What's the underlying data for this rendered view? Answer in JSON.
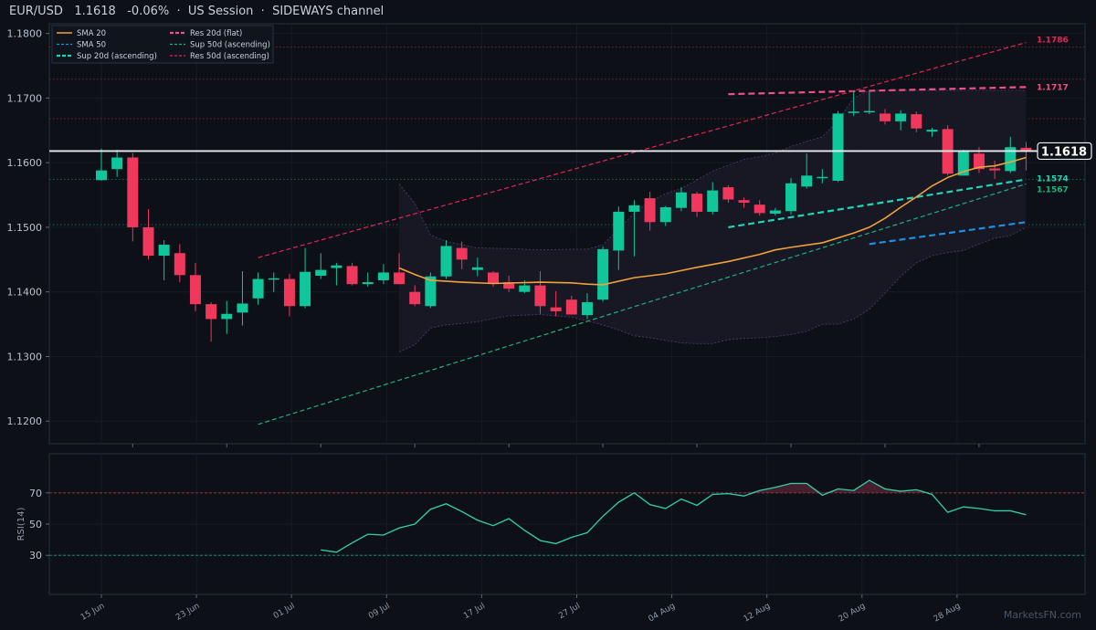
{
  "header": {
    "symbol": "EUR/USD",
    "price": "1.1618",
    "change": "-0.06%",
    "session": "US Session",
    "channel": "SIDEWAYS channel"
  },
  "watermark": "MarketsFN.com",
  "colors": {
    "bg": "#0d1017",
    "up": "#10c79c",
    "down": "#f0385d",
    "sma20": "#f0a23b",
    "sma50": "#1f8fe0",
    "sup20": "#1fd6b6",
    "res20": "#f0508a",
    "sup50": "#1fb07e",
    "res50": "#e02858",
    "rsi": "#2fd3a8"
  },
  "chart_data": {
    "type": "candlestick",
    "ylim": [
      1.1165,
      1.1815
    ],
    "yticks": [
      "1.1200",
      "1.1300",
      "1.1400",
      "1.1500",
      "1.1600",
      "1.1700",
      "1.1800"
    ],
    "xticks": [
      "15 Jun",
      "23 Jun",
      "01 Jul",
      "09 Jul",
      "17 Jul",
      "27 Jul",
      "04 Aug",
      "12 Aug",
      "20 Aug",
      "28 Aug"
    ],
    "last_price": "1.1618",
    "candles": [
      [
        1.1573,
        1.1588,
        1.1622,
        1.1572
      ],
      [
        1.159,
        1.1608,
        1.162,
        1.1578
      ],
      [
        1.1608,
        1.15,
        1.1615,
        1.1478
      ],
      [
        1.15,
        1.1456,
        1.1528,
        1.145
      ],
      [
        1.1456,
        1.1473,
        1.148,
        1.1418
      ],
      [
        1.146,
        1.1426,
        1.1474,
        1.1415
      ],
      [
        1.1426,
        1.1381,
        1.1445,
        1.137
      ],
      [
        1.1381,
        1.1358,
        1.1384,
        1.1323
      ],
      [
        1.1358,
        1.1366,
        1.1386,
        1.1335
      ],
      [
        1.1368,
        1.1382,
        1.1432,
        1.1348
      ],
      [
        1.139,
        1.142,
        1.143,
        1.138
      ],
      [
        1.142,
        1.1421,
        1.143,
        1.14
      ],
      [
        1.142,
        1.1378,
        1.1428,
        1.1362
      ],
      [
        1.1378,
        1.1431,
        1.1468,
        1.1375
      ],
      [
        1.1425,
        1.1434,
        1.146,
        1.142
      ],
      [
        1.1437,
        1.1441,
        1.1445,
        1.141
      ],
      [
        1.144,
        1.1412,
        1.1445,
        1.141
      ],
      [
        1.1412,
        1.1415,
        1.143,
        1.1408
      ],
      [
        1.1418,
        1.143,
        1.1443,
        1.1412
      ],
      [
        1.143,
        1.1412,
        1.146,
        1.1412
      ],
      [
        1.14,
        1.1381,
        1.141,
        1.1378
      ],
      [
        1.1378,
        1.1424,
        1.143,
        1.1375
      ],
      [
        1.1424,
        1.1471,
        1.148,
        1.142
      ],
      [
        1.1468,
        1.145,
        1.1478,
        1.1435
      ],
      [
        1.1434,
        1.1438,
        1.1453,
        1.1424
      ],
      [
        1.143,
        1.1413,
        1.1432,
        1.1408
      ],
      [
        1.1415,
        1.1405,
        1.1425,
        1.14
      ],
      [
        1.14,
        1.141,
        1.1418,
        1.1398
      ],
      [
        1.141,
        1.1378,
        1.1432,
        1.1366
      ],
      [
        1.1376,
        1.137,
        1.1401,
        1.1362
      ],
      [
        1.1388,
        1.1365,
        1.1394,
        1.1365
      ],
      [
        1.1364,
        1.1384,
        1.1398,
        1.1358
      ],
      [
        1.1388,
        1.1466,
        1.147,
        1.1385
      ],
      [
        1.1464,
        1.1524,
        1.1532,
        1.1434
      ],
      [
        1.1524,
        1.1534,
        1.1542,
        1.1455
      ],
      [
        1.1545,
        1.1508,
        1.1555,
        1.1495
      ],
      [
        1.1508,
        1.1531,
        1.1533,
        1.1502
      ],
      [
        1.153,
        1.1554,
        1.1562,
        1.1525
      ],
      [
        1.1552,
        1.1524,
        1.1555,
        1.1516
      ],
      [
        1.1524,
        1.1557,
        1.157,
        1.152
      ],
      [
        1.1562,
        1.1543,
        1.1565,
        1.1538
      ],
      [
        1.1542,
        1.1538,
        1.1546,
        1.153
      ],
      [
        1.1535,
        1.1522,
        1.1542,
        1.1518
      ],
      [
        1.1521,
        1.1526,
        1.153,
        1.1518
      ],
      [
        1.1525,
        1.1568,
        1.1576,
        1.152
      ],
      [
        1.1563,
        1.158,
        1.1614,
        1.156
      ],
      [
        1.1578,
        1.1578,
        1.159,
        1.1568
      ],
      [
        1.1572,
        1.1676,
        1.168,
        1.157
      ],
      [
        1.1678,
        1.1679,
        1.171,
        1.1672
      ],
      [
        1.1679,
        1.168,
        1.171,
        1.1675
      ],
      [
        1.1676,
        1.1664,
        1.1683,
        1.1659
      ],
      [
        1.1664,
        1.1676,
        1.1681,
        1.165
      ],
      [
        1.1675,
        1.1653,
        1.1679,
        1.1647
      ],
      [
        1.1648,
        1.1651,
        1.1654,
        1.164
      ],
      [
        1.1652,
        1.1583,
        1.1658,
        1.158
      ],
      [
        1.158,
        1.1617,
        1.162,
        1.158
      ],
      [
        1.1614,
        1.159,
        1.1624,
        1.1584
      ],
      [
        1.1591,
        1.1588,
        1.1603,
        1.1575
      ],
      [
        1.1587,
        1.1624,
        1.164,
        1.1584
      ],
      [
        1.1623,
        1.1618,
        1.1632,
        1.1588
      ]
    ],
    "sma20": [
      [
        19,
        1.1437
      ],
      [
        20,
        1.1427
      ],
      [
        21,
        1.1418
      ],
      [
        23,
        1.1415
      ],
      [
        25,
        1.1413
      ],
      [
        28,
        1.1415
      ],
      [
        30,
        1.1414
      ],
      [
        31,
        1.1412
      ],
      [
        32,
        1.1411
      ],
      [
        34,
        1.1422
      ],
      [
        36,
        1.1428
      ],
      [
        38,
        1.1438
      ],
      [
        40,
        1.1447
      ],
      [
        42,
        1.1458
      ],
      [
        43,
        1.1465
      ],
      [
        44,
        1.1469
      ],
      [
        46,
        1.1476
      ],
      [
        48,
        1.1491
      ],
      [
        49,
        1.15
      ],
      [
        50,
        1.1514
      ],
      [
        51,
        1.1531
      ],
      [
        52,
        1.1547
      ],
      [
        53,
        1.1564
      ],
      [
        54,
        1.1577
      ],
      [
        55,
        1.1586
      ],
      [
        56,
        1.1593
      ],
      [
        57,
        1.1595
      ],
      [
        58,
        1.1601
      ],
      [
        59,
        1.1608
      ]
    ],
    "sma50": [
      [
        49,
        1.1474
      ],
      [
        52,
        1.1478
      ],
      [
        54,
        1.1484
      ],
      [
        56,
        1.149
      ],
      [
        58,
        1.1498
      ],
      [
        59,
        1.1508
      ]
    ],
    "bands": {
      "upper": [
        [
          19,
          1.1567
        ],
        [
          20,
          1.1537
        ],
        [
          21,
          1.1488
        ],
        [
          22,
          1.1478
        ],
        [
          23,
          1.1473
        ],
        [
          24,
          1.1468
        ],
        [
          26,
          1.1467
        ],
        [
          28,
          1.1465
        ],
        [
          30,
          1.1466
        ],
        [
          31,
          1.1466
        ],
        [
          32,
          1.1473
        ],
        [
          33,
          1.1497
        ],
        [
          34,
          1.1522
        ],
        [
          35,
          1.154
        ],
        [
          36,
          1.1552
        ],
        [
          37,
          1.156
        ],
        [
          38,
          1.1573
        ],
        [
          39,
          1.1587
        ],
        [
          40,
          1.1596
        ],
        [
          41,
          1.1605
        ],
        [
          42,
          1.1609
        ],
        [
          43,
          1.1615
        ],
        [
          44,
          1.1625
        ],
        [
          45,
          1.1633
        ],
        [
          46,
          1.164
        ],
        [
          47,
          1.1665
        ],
        [
          48,
          1.17
        ],
        [
          49,
          1.1712
        ],
        [
          50,
          1.1712
        ],
        [
          52,
          1.1712
        ],
        [
          53,
          1.1712
        ],
        [
          55,
          1.1712
        ],
        [
          57,
          1.1712
        ],
        [
          59,
          1.1712
        ]
      ],
      "lower": [
        [
          19,
          1.1307
        ],
        [
          20,
          1.1318
        ],
        [
          21,
          1.1344
        ],
        [
          22,
          1.1349
        ],
        [
          23,
          1.1351
        ],
        [
          24,
          1.1354
        ],
        [
          26,
          1.1363
        ],
        [
          28,
          1.1365
        ],
        [
          30,
          1.1361
        ],
        [
          31,
          1.1355
        ],
        [
          32,
          1.1349
        ],
        [
          33,
          1.1341
        ],
        [
          34,
          1.1332
        ],
        [
          35,
          1.1329
        ],
        [
          36,
          1.1325
        ],
        [
          37,
          1.1321
        ],
        [
          38,
          1.132
        ],
        [
          39,
          1.132
        ],
        [
          40,
          1.1326
        ],
        [
          41,
          1.1328
        ],
        [
          42,
          1.1329
        ],
        [
          43,
          1.1331
        ],
        [
          44,
          1.1334
        ],
        [
          45,
          1.1339
        ],
        [
          46,
          1.135
        ],
        [
          47,
          1.135
        ],
        [
          48,
          1.1358
        ],
        [
          49,
          1.1373
        ],
        [
          50,
          1.1398
        ],
        [
          51,
          1.1424
        ],
        [
          52,
          1.1445
        ],
        [
          53,
          1.1456
        ],
        [
          54,
          1.1461
        ],
        [
          55,
          1.1464
        ],
        [
          56,
          1.1474
        ],
        [
          57,
          1.1483
        ],
        [
          58,
          1.1487
        ],
        [
          59,
          1.15
        ]
      ]
    },
    "trendlines": [
      {
        "name": "Res 20d (flat)",
        "color": "res20",
        "style": "dash-thick",
        "points": [
          [
            40,
            1.1706
          ],
          [
            59,
            1.1717
          ]
        ],
        "label": "1.1717"
      },
      {
        "name": "Sup 20d (ascending)",
        "color": "sup20",
        "style": "dash-thick",
        "points": [
          [
            40,
            1.15
          ],
          [
            59,
            1.1574
          ]
        ],
        "label": "1.1574"
      },
      {
        "name": "Sup 50d (ascending)",
        "color": "sup50",
        "style": "dash-thin",
        "points": [
          [
            10,
            1.1195
          ],
          [
            59,
            1.1567
          ]
        ],
        "label": "1.1567"
      },
      {
        "name": "Res 50d (ascending)",
        "color": "res50",
        "style": "dash-thin",
        "points": [
          [
            10,
            1.1453
          ],
          [
            59,
            1.1786
          ]
        ],
        "label": "1.1786"
      },
      {
        "name": "SMA 50",
        "color": "sma50",
        "style": "dash-thick",
        "points": [
          [
            49,
            1.1474
          ],
          [
            59,
            1.1508
          ]
        ],
        "label": ""
      }
    ],
    "hlines": [
      {
        "value": 1.1779,
        "color": "#7a3030",
        "style": "dot"
      },
      {
        "value": 1.1729,
        "color": "#7a3030",
        "style": "dot"
      },
      {
        "value": 1.1668,
        "color": "#7a3030",
        "style": "dot"
      },
      {
        "value": 1.1574,
        "color": "#1f6b55",
        "style": "dot"
      },
      {
        "value": 1.1504,
        "color": "#1f6b55",
        "style": "dot"
      }
    ],
    "legend": [
      {
        "label": "SMA 20",
        "color": "sma20",
        "style": "solid"
      },
      {
        "label": "Res 20d (flat)",
        "color": "res20",
        "style": "dash-thick"
      },
      {
        "label": "SMA 50",
        "color": "sma50",
        "style": "dash-thin"
      },
      {
        "label": "Sup 50d (ascending)",
        "color": "sup50",
        "style": "dash-thin"
      },
      {
        "label": "Sup 20d (ascending)",
        "color": "sup20",
        "style": "dash-thick"
      },
      {
        "label": "Res 50d (ascending)",
        "color": "res50",
        "style": "dash-thin"
      }
    ],
    "rsi": {
      "label": "RSI(14)",
      "ylim": [
        5,
        95
      ],
      "yticks": [
        "30",
        "50",
        "70"
      ],
      "upper": 70,
      "lower": 30,
      "values": [
        [
          14,
          33.5
        ],
        [
          15,
          32
        ],
        [
          16,
          38
        ],
        [
          17,
          43.5
        ],
        [
          18,
          43
        ],
        [
          19,
          47.5
        ],
        [
          20,
          50
        ],
        [
          21,
          59.5
        ],
        [
          22,
          63
        ],
        [
          23,
          58
        ],
        [
          24,
          52.5
        ],
        [
          25,
          49
        ],
        [
          26,
          53.5
        ],
        [
          27,
          46
        ],
        [
          28,
          39.5
        ],
        [
          29,
          37.5
        ],
        [
          30,
          41.5
        ],
        [
          31,
          44.5
        ],
        [
          32,
          55
        ],
        [
          33,
          64
        ],
        [
          34,
          70
        ],
        [
          35,
          62.5
        ],
        [
          36,
          60
        ],
        [
          37,
          66
        ],
        [
          38,
          62
        ],
        [
          39,
          69
        ],
        [
          40,
          69.5
        ],
        [
          41,
          68
        ],
        [
          42,
          71.5
        ],
        [
          43,
          73.5
        ],
        [
          44,
          76
        ],
        [
          45,
          76
        ],
        [
          46,
          68.5
        ],
        [
          47,
          72.5
        ],
        [
          48,
          71.5
        ],
        [
          49,
          78
        ],
        [
          50,
          72.5
        ],
        [
          51,
          71
        ],
        [
          52,
          72
        ],
        [
          53,
          69
        ],
        [
          54,
          57.5
        ],
        [
          55,
          61
        ],
        [
          56,
          60
        ],
        [
          57,
          58.5
        ],
        [
          58,
          58.5
        ],
        [
          59,
          56
        ]
      ]
    }
  }
}
